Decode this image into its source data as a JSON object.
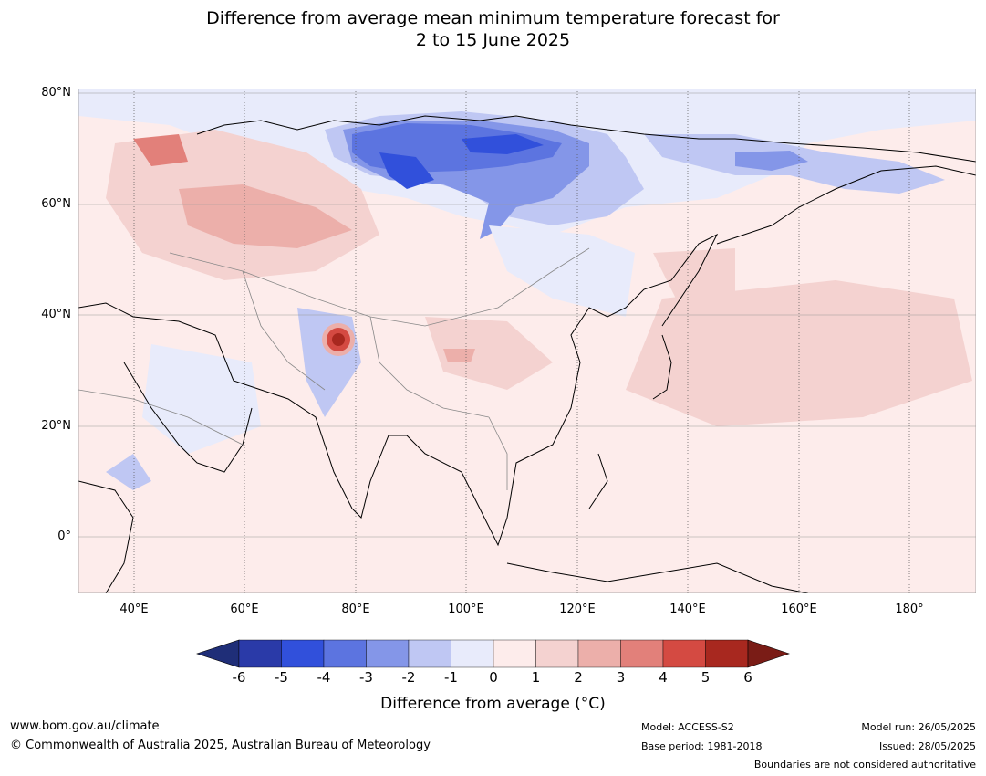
{
  "title_line1": "Difference from average mean minimum temperature forecast for",
  "title_line2": "2 to 15 June 2025",
  "lat_labels": [
    "80°N",
    "60°N",
    "40°N",
    "20°N",
    "0°"
  ],
  "lon_labels": [
    "40°E",
    "60°E",
    "80°E",
    "100°E",
    "120°E",
    "140°E",
    "160°E",
    "180°"
  ],
  "colorbar": {
    "ticks": [
      "-6",
      "-5",
      "-4",
      "-3",
      "-2",
      "-1",
      "0",
      "1",
      "2",
      "3",
      "4",
      "5",
      "6"
    ],
    "colors": [
      "#2a3aa8",
      "#3150db",
      "#5c74e0",
      "#8496e8",
      "#bfc7f3",
      "#e8ebfb",
      "#fdeceb",
      "#f4d2d0",
      "#ecafaa",
      "#e2807a",
      "#d44a42",
      "#a8281f"
    ],
    "under_color": "#1f2e78",
    "over_color": "#7a1c16",
    "label": "Difference from average (°C)"
  },
  "footer": {
    "url": "www.bom.gov.au/climate",
    "copyright": "© Commonwealth of Australia 2025, Australian Bureau of Meteorology",
    "model": "Model: ACCESS-S2",
    "base_period": "Base period: 1981-2018",
    "model_run": "Model run: 26/05/2025",
    "issued": "Issued: 28/05/2025",
    "disclaimer": "Boundaries are not considered authoritative"
  }
}
